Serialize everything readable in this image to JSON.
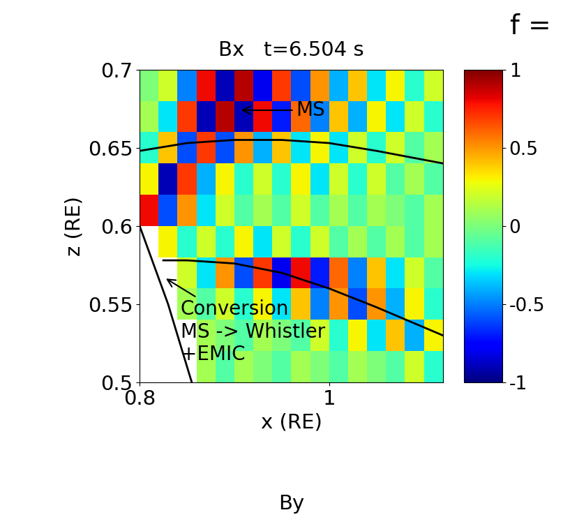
{
  "chart_data": {
    "type": "heatmap",
    "title": "Bx   t=6.504 s",
    "corner_label": "f =",
    "xlabel": "x (RE)",
    "ylabel": "z (RE)",
    "bottom_label": "By",
    "xlim": [
      0.8,
      1.12
    ],
    "ylim": [
      0.5,
      0.7
    ],
    "xticks": [
      0.8,
      1
    ],
    "yticks": [
      0.5,
      0.55,
      0.6,
      0.65,
      0.7
    ],
    "x_edges": [
      0.8,
      0.82,
      0.84,
      0.86,
      0.88,
      0.9,
      0.92,
      0.94,
      0.96,
      0.98,
      1.0,
      1.02,
      1.04,
      1.06,
      1.08,
      1.1,
      1.12
    ],
    "y_edges": [
      0.5,
      0.52,
      0.54,
      0.56,
      0.58,
      0.6,
      0.62,
      0.64,
      0.66,
      0.68,
      0.7
    ],
    "cells": [
      [
        null,
        null,
        null,
        0.1,
        -0.1,
        0.1,
        0,
        -0.1,
        0.1,
        0,
        -0.1,
        0.1,
        0,
        -0.1,
        0.2,
        -0.2
      ],
      [
        null,
        null,
        null,
        0.1,
        0,
        -0.1,
        0.1,
        0,
        -0.1,
        0.2,
        -0.2,
        0.3,
        -0.3,
        0.4,
        -0.4,
        0.3
      ],
      [
        null,
        null,
        0.1,
        -0.1,
        0.2,
        -0.2,
        0.3,
        -0.3,
        0.4,
        -0.5,
        0.5,
        -0.6,
        0.5,
        -0.4,
        0.3,
        -0.2
      ],
      [
        null,
        null,
        0.2,
        -0.3,
        0.5,
        -0.6,
        0.7,
        -0.8,
        0.8,
        -0.7,
        0.6,
        -0.5,
        0.4,
        -0.3,
        0.2,
        -0.1
      ],
      [
        null,
        0.3,
        -0.2,
        0.2,
        -0.2,
        0.3,
        -0.3,
        0.2,
        -0.2,
        0.2,
        -0.1,
        0.1,
        -0.1,
        0.1,
        -0.1,
        0.1
      ],
      [
        0.8,
        -0.6,
        0.5,
        -0.3,
        0.2,
        -0.1,
        0.1,
        -0.1,
        0.2,
        -0.1,
        0.1,
        -0.1,
        0.1,
        0,
        -0.1,
        0.1
      ],
      [
        0.3,
        -0.9,
        0.7,
        -0.4,
        0.3,
        -0.2,
        0.2,
        -0.2,
        0.3,
        -0.3,
        0.2,
        -0.2,
        0.2,
        -0.1,
        0.1,
        -0.1
      ],
      [
        -0.2,
        0.4,
        -0.6,
        0.7,
        -0.6,
        0.5,
        -0.4,
        0.4,
        -0.3,
        0.3,
        -0.3,
        0.2,
        -0.2,
        0.2,
        -0.1,
        0.1
      ],
      [
        0.1,
        -0.3,
        0.7,
        -0.9,
        0.9,
        -0.9,
        0.8,
        -0.7,
        0.6,
        -0.5,
        0.4,
        -0.4,
        0.3,
        -0.3,
        0.2,
        -0.2
      ],
      [
        0,
        0.2,
        -0.5,
        0.8,
        -0.9,
        0.9,
        -0.8,
        0.7,
        -0.6,
        0.5,
        -0.4,
        0.4,
        -0.3,
        0.3,
        -0.2,
        0.2
      ]
    ],
    "colorbar_lim": [
      -1,
      1
    ],
    "colorbar_ticks": [
      -1,
      -0.5,
      0,
      0.5,
      1
    ],
    "curves": [
      {
        "x": [
          0.8,
          0.85,
          0.9,
          0.95,
          1.0,
          1.05,
          1.12
        ],
        "y": [
          0.648,
          0.653,
          0.655,
          0.655,
          0.653,
          0.648,
          0.64
        ]
      },
      {
        "x": [
          0.825,
          0.85,
          0.9,
          0.95,
          1.0,
          1.05,
          1.12
        ],
        "y": [
          0.578,
          0.578,
          0.576,
          0.57,
          0.56,
          0.548,
          0.53
        ]
      },
      {
        "x": [
          0.8,
          0.83,
          0.855
        ],
        "y": [
          0.6,
          0.55,
          0.5
        ]
      }
    ],
    "annotations": [
      {
        "text": "MS",
        "xy": [
          0.905,
          0.674
        ],
        "text_xy": [
          0.965,
          0.674
        ]
      },
      {
        "text": "Conversion\nMS -> Whistler\n+EMIC",
        "xy": [
          0.826,
          0.567
        ],
        "text_xy": [
          0.843,
          0.553
        ]
      }
    ]
  }
}
